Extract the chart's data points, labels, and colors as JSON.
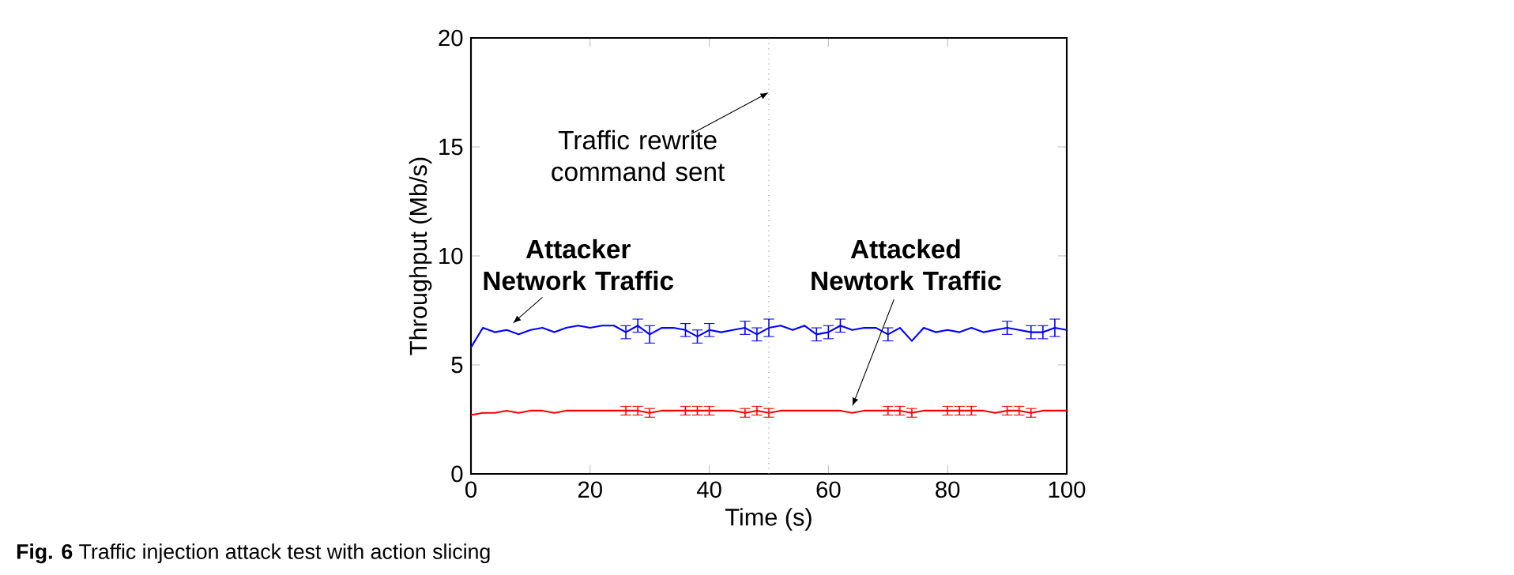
{
  "chart_data": {
    "type": "line",
    "xlabel": "Time (s)",
    "ylabel": "Throughput (Mb/s)",
    "xlim": [
      0,
      100
    ],
    "ylim": [
      0,
      20
    ],
    "xticks": [
      0,
      20,
      40,
      60,
      80,
      100
    ],
    "yticks": [
      0,
      5,
      10,
      15,
      20
    ],
    "x": [
      0,
      2,
      4,
      6,
      8,
      10,
      12,
      14,
      16,
      18,
      20,
      22,
      24,
      26,
      28,
      30,
      32,
      34,
      36,
      38,
      40,
      42,
      44,
      46,
      48,
      50,
      52,
      54,
      56,
      58,
      60,
      62,
      64,
      66,
      68,
      70,
      72,
      74,
      76,
      78,
      80,
      82,
      84,
      86,
      88,
      90,
      92,
      94,
      96,
      98,
      100
    ],
    "series": [
      {
        "color": "#0000ff",
        "values": [
          5.8,
          6.7,
          6.5,
          6.6,
          6.4,
          6.6,
          6.7,
          6.5,
          6.7,
          6.8,
          6.7,
          6.8,
          6.8,
          6.5,
          6.8,
          6.4,
          6.7,
          6.7,
          6.6,
          6.3,
          6.6,
          6.5,
          6.6,
          6.7,
          6.4,
          6.7,
          6.8,
          6.6,
          6.8,
          6.4,
          6.5,
          6.8,
          6.6,
          6.7,
          6.7,
          6.4,
          6.7,
          6.1,
          6.7,
          6.5,
          6.6,
          6.5,
          6.7,
          6.5,
          6.6,
          6.7,
          6.6,
          6.5,
          6.5,
          6.7,
          6.6
        ],
        "errors": [
          null,
          null,
          null,
          null,
          null,
          null,
          null,
          null,
          null,
          null,
          null,
          null,
          null,
          0.3,
          0.3,
          0.4,
          null,
          null,
          0.3,
          0.3,
          0.3,
          null,
          null,
          0.3,
          0.3,
          0.4,
          null,
          null,
          null,
          0.3,
          0.3,
          0.3,
          null,
          null,
          null,
          0.3,
          null,
          null,
          null,
          null,
          null,
          null,
          null,
          null,
          null,
          0.3,
          null,
          0.3,
          0.3,
          0.4,
          null
        ]
      },
      {
        "color": "#ff0000",
        "values": [
          2.7,
          2.8,
          2.8,
          2.9,
          2.8,
          2.9,
          2.9,
          2.8,
          2.9,
          2.9,
          2.9,
          2.9,
          2.9,
          2.9,
          2.9,
          2.8,
          2.9,
          2.9,
          2.9,
          2.9,
          2.9,
          2.9,
          2.9,
          2.8,
          2.9,
          2.8,
          2.9,
          2.9,
          2.9,
          2.9,
          2.9,
          2.9,
          2.8,
          2.9,
          2.9,
          2.9,
          2.9,
          2.8,
          2.9,
          2.9,
          2.9,
          2.9,
          2.9,
          2.9,
          2.8,
          2.9,
          2.9,
          2.8,
          2.9,
          2.9,
          2.9
        ],
        "errors": [
          null,
          null,
          null,
          null,
          null,
          null,
          null,
          null,
          null,
          null,
          null,
          null,
          null,
          0.2,
          0.2,
          0.2,
          null,
          null,
          0.2,
          0.2,
          0.2,
          null,
          null,
          0.2,
          0.2,
          0.2,
          null,
          null,
          null,
          null,
          null,
          null,
          null,
          null,
          null,
          0.2,
          0.2,
          0.2,
          null,
          null,
          0.2,
          0.2,
          0.2,
          null,
          null,
          0.2,
          0.2,
          0.2,
          null,
          null,
          null
        ]
      }
    ],
    "ref_lines": [
      {
        "axis": "x",
        "value": 50,
        "color": "#808080",
        "line_style": "dotted"
      }
    ],
    "annotations": [
      {
        "text": "Traffic rewrite command sent",
        "x": 50,
        "y": 17.5
      },
      {
        "text": "Attacker Network Traffic",
        "x": 7,
        "y": 6.9
      },
      {
        "text": "Attacked Newtork Traffic",
        "x": 64,
        "y": 3.1
      },
      "**Fig. 6** Traffic injection attack test with action slicing"
    ],
    "marker": "none",
    "line_style": "solid"
  }
}
